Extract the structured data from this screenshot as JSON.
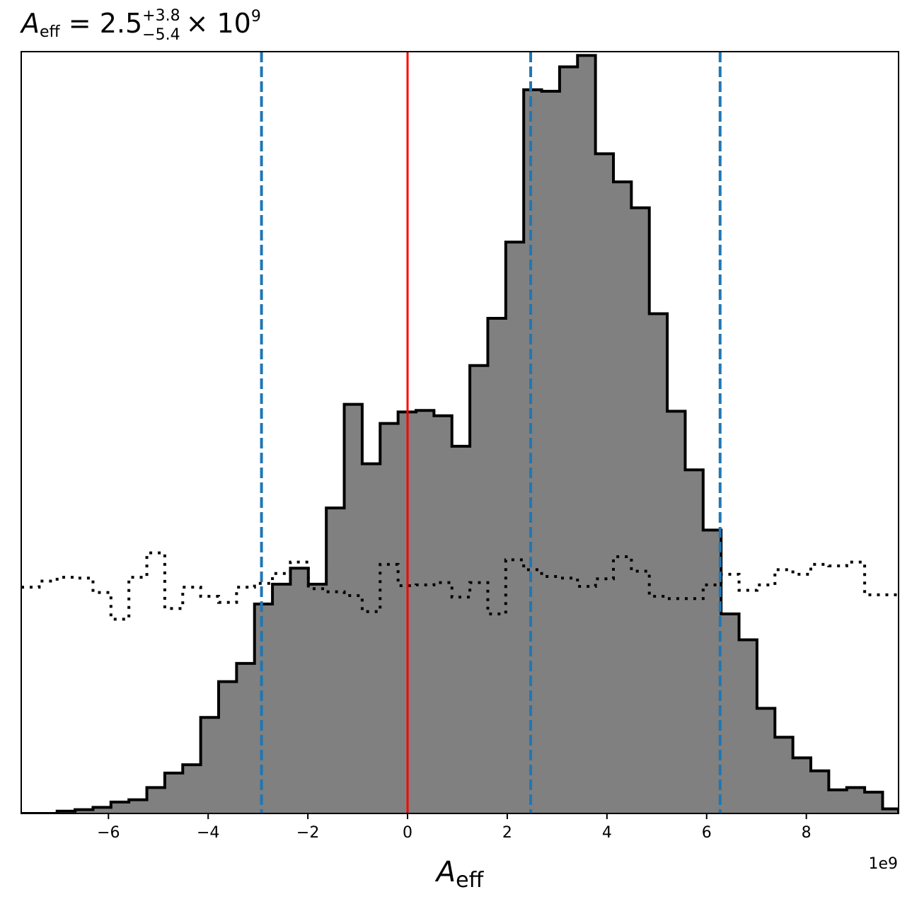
{
  "chart_data": {
    "type": "histogram",
    "title": {
      "symbol": "A",
      "symbol_sub": "eff",
      "equals": " = 2.5",
      "upper_err": "+3.8",
      "lower_err": "−5.4",
      "exponent_text": "× 10",
      "exponent": "9"
    },
    "xlabel": {
      "symbol": "A",
      "sub": "eff"
    },
    "x_offset_text": "1e9",
    "xlim": [
      -7.75,
      9.85
    ],
    "ylim": [
      0,
      1.0
    ],
    "x_ticks": [
      -6,
      -4,
      -2,
      0,
      2,
      4,
      6,
      8
    ],
    "x_tick_labels": [
      "−6",
      "−4",
      "−2",
      "0",
      "2",
      "4",
      "6",
      "8"
    ],
    "y_ticks_visible": false,
    "grid": false,
    "colors": {
      "fill": "#808080",
      "outline": "#000000",
      "reference_line": "#ff0000",
      "quantile_lines": "#1f77b4",
      "prior": "#000000"
    },
    "posterior_bin_edges": [
      -7.75,
      -7.39,
      -7.03,
      -6.67,
      -6.31,
      -5.95,
      -5.59,
      -5.23,
      -4.87,
      -4.51,
      -4.15,
      -3.79,
      -3.43,
      -3.07,
      -2.71,
      -2.35,
      -1.99,
      -1.63,
      -1.27,
      -0.91,
      -0.55,
      -0.19,
      0.17,
      0.53,
      0.89,
      1.25,
      1.61,
      1.97,
      2.33,
      2.69,
      3.05,
      3.41,
      3.77,
      4.13,
      4.49,
      4.85,
      5.21,
      5.57,
      5.93,
      6.29,
      6.65,
      7.01,
      7.37,
      7.73,
      8.09,
      8.45,
      8.81,
      9.17,
      9.53,
      9.85
    ],
    "posterior_counts": [
      0.0,
      0.0,
      0.003,
      0.005,
      0.008,
      0.015,
      0.018,
      0.034,
      0.053,
      0.064,
      0.126,
      0.173,
      0.197,
      0.275,
      0.301,
      0.322,
      0.301,
      0.401,
      0.537,
      0.459,
      0.512,
      0.527,
      0.529,
      0.522,
      0.482,
      0.588,
      0.65,
      0.75,
      0.95,
      0.948,
      0.98,
      0.995,
      0.866,
      0.829,
      0.795,
      0.656,
      0.528,
      0.451,
      0.372,
      0.262,
      0.228,
      0.138,
      0.1,
      0.073,
      0.056,
      0.031,
      0.034,
      0.028,
      0.006
    ],
    "prior_bin_edges": [
      -7.75,
      -7.39,
      -7.03,
      -6.67,
      -6.31,
      -5.95,
      -5.59,
      -5.23,
      -4.87,
      -4.51,
      -4.15,
      -3.79,
      -3.43,
      -3.07,
      -2.71,
      -2.35,
      -1.99,
      -1.63,
      -1.27,
      -0.91,
      -0.55,
      -0.19,
      0.17,
      0.53,
      0.89,
      1.25,
      1.61,
      1.97,
      2.33,
      2.69,
      3.05,
      3.41,
      3.77,
      4.13,
      4.49,
      4.85,
      5.21,
      5.57,
      5.93,
      6.29,
      6.65,
      7.01,
      7.37,
      7.73,
      8.09,
      8.45,
      8.81,
      9.17,
      9.53,
      9.85
    ],
    "prior_counts": [
      0.297,
      0.305,
      0.31,
      0.309,
      0.29,
      0.255,
      0.31,
      0.342,
      0.269,
      0.297,
      0.285,
      0.277,
      0.297,
      0.302,
      0.315,
      0.33,
      0.295,
      0.291,
      0.286,
      0.265,
      0.327,
      0.299,
      0.3,
      0.303,
      0.284,
      0.303,
      0.262,
      0.333,
      0.32,
      0.311,
      0.309,
      0.298,
      0.308,
      0.337,
      0.318,
      0.285,
      0.282,
      0.282,
      0.3,
      0.314,
      0.293,
      0.3,
      0.32,
      0.314,
      0.327,
      0.325,
      0.33,
      0.287,
      0.287
    ],
    "reference_line_x": 0.0,
    "quantile_lines_x": [
      -2.93,
      2.47,
      6.27
    ]
  }
}
